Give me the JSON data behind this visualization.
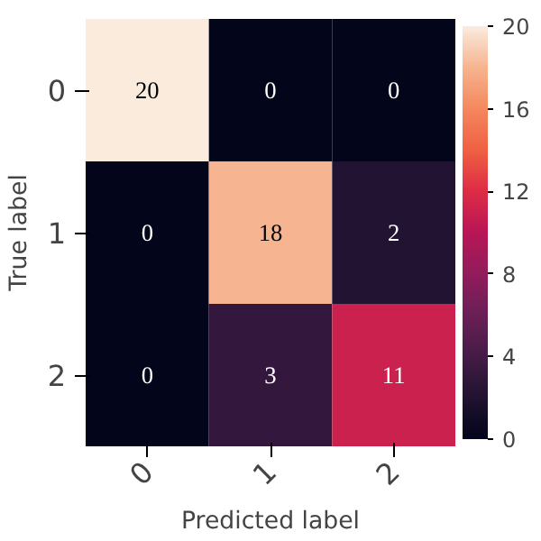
{
  "chart_data": {
    "type": "heatmap",
    "xlabel": "Predicted label",
    "ylabel": "True label",
    "categories": [
      "0",
      "1",
      "2"
    ],
    "y_categories": [
      "0",
      "1",
      "2"
    ],
    "cells": [
      [
        20,
        0,
        0
      ],
      [
        0,
        18,
        2
      ],
      [
        0,
        3,
        11
      ]
    ],
    "clim": [
      0,
      20
    ],
    "cticks": [
      0,
      4,
      8,
      12,
      16,
      20
    ],
    "data_labels": true
  }
}
